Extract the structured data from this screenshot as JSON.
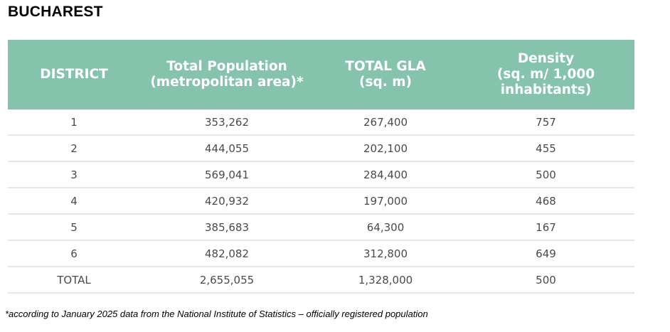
{
  "title": "BUCHAREST",
  "table": {
    "headers": [
      {
        "lines": [
          "DISTRICT"
        ]
      },
      {
        "lines": [
          "Total Population",
          "(metropolitan area)*"
        ]
      },
      {
        "lines": [
          "TOTAL GLA",
          "(sq. m)"
        ]
      },
      {
        "lines": [
          "Density",
          "(sq. m/ 1,000",
          "inhabitants)"
        ]
      }
    ],
    "rows": [
      [
        "1",
        "353,262",
        "267,400",
        "757"
      ],
      [
        "2",
        "444,055",
        "202,100",
        "455"
      ],
      [
        "3",
        "569,041",
        "284,400",
        "500"
      ],
      [
        "4",
        "420,932",
        "197,000",
        "468"
      ],
      [
        "5",
        "385,683",
        "64,300",
        "167"
      ],
      [
        "6",
        "482,082",
        "312,800",
        "649"
      ],
      [
        "TOTAL",
        "2,655,055",
        "1,328,000",
        "500"
      ]
    ]
  },
  "footnote": "*according to January 2025 data from the National Institute of Statistics – officially registered population",
  "colors": {
    "header_bg": "#86c3ad",
    "header_text": "#ffffff",
    "row_divider": "#e6e6e6"
  }
}
